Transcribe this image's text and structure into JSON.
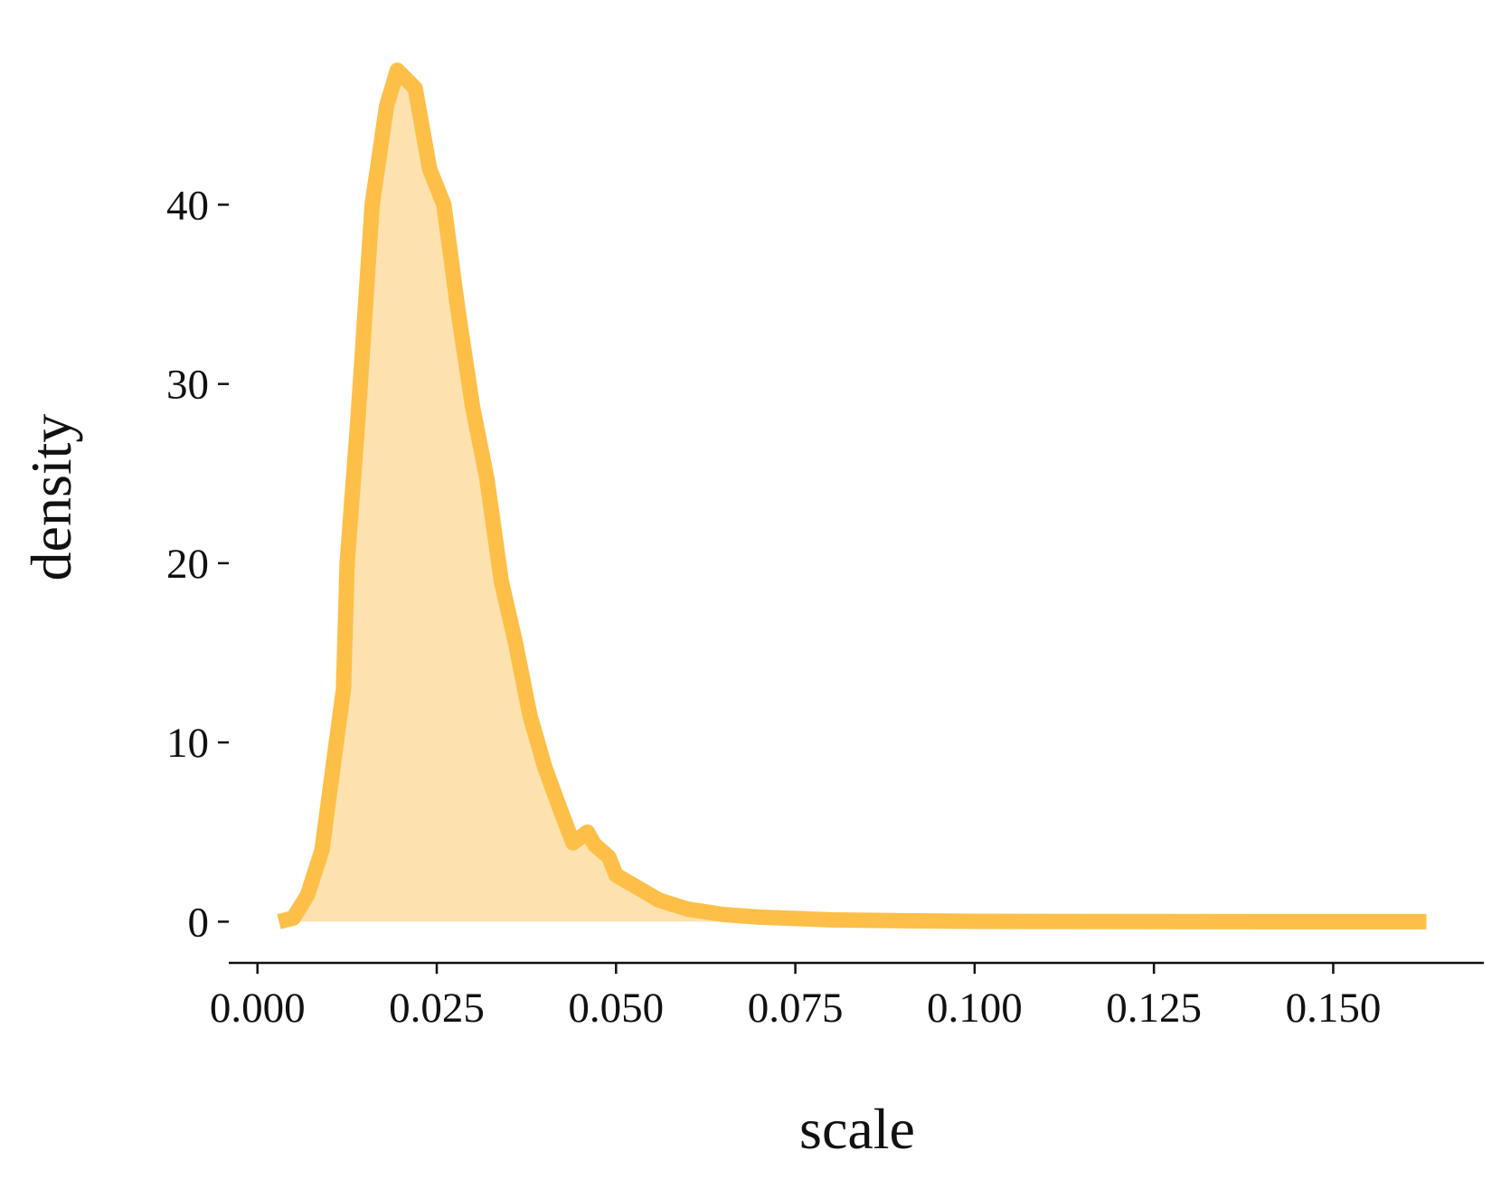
{
  "chart_data": {
    "type": "density",
    "x_label": "scale",
    "y_label": "density",
    "color": "#fdbf47",
    "fill_color": "#fde2b0",
    "x": [
      0.003,
      0.005,
      0.007,
      0.009,
      0.01,
      0.012,
      0.0125,
      0.014,
      0.016,
      0.018,
      0.0195,
      0.022,
      0.024,
      0.026,
      0.028,
      0.03,
      0.032,
      0.034,
      0.036,
      0.038,
      0.04,
      0.042,
      0.044,
      0.046,
      0.047,
      0.049,
      0.05,
      0.053,
      0.056,
      0.06,
      0.065,
      0.07,
      0.08,
      0.09,
      0.1,
      0.12,
      0.14,
      0.163
    ],
    "values": [
      0,
      0.2,
      1.5,
      4,
      7,
      13,
      20,
      28,
      40,
      45.5,
      47.5,
      46.5,
      42,
      40,
      34,
      28.7,
      24.7,
      19,
      15.5,
      11.5,
      8.7,
      6.5,
      4.4,
      5.0,
      4.3,
      3.6,
      2.6,
      1.9,
      1.2,
      0.7,
      0.4,
      0.25,
      0.1,
      0.05,
      0.02,
      0.01,
      0,
      0
    ],
    "xlim": [
      -0.004,
      0.171
    ],
    "ylim": [
      -2.3,
      49
    ],
    "xticks": [
      {
        "value": 0,
        "label": "0.000"
      },
      {
        "value": 0.025,
        "label": "0.025"
      },
      {
        "value": 0.05,
        "label": "0.050"
      },
      {
        "value": 0.075,
        "label": "0.075"
      },
      {
        "value": 0.1,
        "label": "0.100"
      },
      {
        "value": 0.125,
        "label": "0.125"
      },
      {
        "value": 0.15,
        "label": "0.150"
      }
    ],
    "yticks": [
      0,
      10,
      20,
      30,
      40
    ]
  }
}
